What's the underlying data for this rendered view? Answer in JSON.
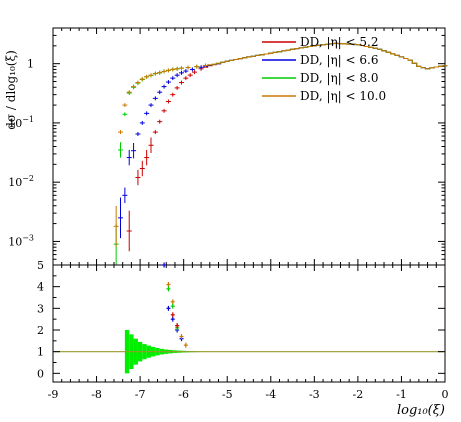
{
  "chart_data": [
    {
      "panel": "main",
      "type": "line",
      "ylabel": "dσ / dlog₁₀(ξ)",
      "yscale": "log",
      "xlim": [
        -9,
        0
      ],
      "ylim": [
        0.0004,
        4
      ],
      "y_ticks": [
        {
          "value": 0.001,
          "base": "10",
          "exp": "−3"
        },
        {
          "value": 0.01,
          "base": "10",
          "exp": "−2"
        },
        {
          "value": 0.1,
          "base": "10",
          "exp": "−1"
        },
        {
          "value": 1,
          "base": "1",
          "exp": ""
        }
      ],
      "legend_position": "top-right",
      "series": [
        {
          "name": "DD, |η| < 5.2",
          "color": "#cc0000",
          "x": [
            -7.25,
            -7.05,
            -6.95,
            -6.85,
            -6.75,
            -6.65,
            -6.55,
            -6.45,
            -6.35,
            -6.25,
            -6.15,
            -6.05,
            -5.95,
            -5.85,
            -5.75,
            -5.6,
            -5.4,
            -5.2,
            -5.0,
            -4.5,
            -4.0,
            -3.5,
            -3.0,
            -2.5,
            -2.0,
            -1.5,
            -1.0,
            -0.8,
            -0.6,
            -0.4,
            -0.2,
            -0.05
          ],
          "y": [
            0.0015,
            0.012,
            0.017,
            0.026,
            0.042,
            0.07,
            0.105,
            0.16,
            0.23,
            0.3,
            0.39,
            0.48,
            0.57,
            0.64,
            0.72,
            0.82,
            0.92,
            1.0,
            1.1,
            1.3,
            1.5,
            1.75,
            2.0,
            2.2,
            2.1,
            1.75,
            1.3,
            1.15,
            0.9,
            0.82,
            0.88,
            0.92
          ]
        },
        {
          "name": "DD, |η| < 6.6",
          "color": "#0000dd",
          "x": [
            -7.45,
            -7.35,
            -7.25,
            -7.15,
            -7.05,
            -6.95,
            -6.85,
            -6.75,
            -6.65,
            -6.55,
            -6.45,
            -6.35,
            -6.25,
            -6.15,
            -6.05,
            -5.95,
            -5.8,
            -5.6,
            -5.4,
            -5.2,
            -5.0,
            -4.5,
            -4.0,
            -3.5,
            -3.0,
            -2.5,
            -2.0,
            -1.5,
            -1.0,
            -0.8,
            -0.6,
            -0.4,
            -0.2,
            -0.05
          ],
          "y": [
            0.0025,
            0.006,
            0.026,
            0.034,
            0.065,
            0.1,
            0.145,
            0.2,
            0.26,
            0.33,
            0.41,
            0.49,
            0.57,
            0.64,
            0.7,
            0.75,
            0.8,
            0.87,
            0.94,
            1.0,
            1.1,
            1.3,
            1.5,
            1.75,
            2.0,
            2.2,
            2.1,
            1.75,
            1.3,
            1.15,
            0.9,
            0.82,
            0.88,
            0.92
          ]
        },
        {
          "name": "DD, |η| < 8.0",
          "color": "#00cc00",
          "x": [
            -7.55,
            -7.45,
            -7.35,
            -7.25,
            -7.15,
            -7.05,
            -6.95,
            -6.85,
            -6.75,
            -6.65,
            -6.55,
            -6.45,
            -6.35,
            -6.25,
            -6.15,
            -6.05,
            -5.9,
            -5.7,
            -5.5,
            -5.3,
            -5.0,
            -4.5,
            -4.0,
            -3.5,
            -3.0,
            -2.5,
            -2.0,
            -1.5,
            -1.0,
            -0.8,
            -0.6,
            -0.4,
            -0.2,
            -0.05
          ],
          "y": [
            0.0009,
            0.035,
            0.14,
            0.32,
            0.4,
            0.47,
            0.54,
            0.6,
            0.63,
            0.68,
            0.7,
            0.74,
            0.77,
            0.8,
            0.82,
            0.84,
            0.86,
            0.89,
            0.93,
            0.98,
            1.1,
            1.3,
            1.5,
            1.75,
            2.0,
            2.2,
            2.1,
            1.75,
            1.3,
            1.15,
            0.9,
            0.82,
            0.88,
            0.92
          ]
        },
        {
          "name": "DD, |η| < 10.0",
          "color": "#cc7700",
          "x": [
            -7.55,
            -7.45,
            -7.35,
            -7.25,
            -7.15,
            -7.05,
            -6.95,
            -6.85,
            -6.75,
            -6.65,
            -6.55,
            -6.45,
            -6.35,
            -6.25,
            -6.15,
            -6.05,
            -5.9,
            -5.7,
            -5.5,
            -5.3,
            -5.0,
            -4.5,
            -4.0,
            -3.5,
            -3.0,
            -2.5,
            -2.0,
            -1.5,
            -1.0,
            -0.8,
            -0.6,
            -0.4,
            -0.2,
            -0.05
          ],
          "y": [
            0.0018,
            0.07,
            0.2,
            0.33,
            0.41,
            0.48,
            0.55,
            0.6,
            0.64,
            0.68,
            0.71,
            0.74,
            0.77,
            0.8,
            0.82,
            0.84,
            0.86,
            0.89,
            0.93,
            0.98,
            1.1,
            1.3,
            1.5,
            1.75,
            2.0,
            2.2,
            2.1,
            1.75,
            1.3,
            1.15,
            0.9,
            0.82,
            0.88,
            0.92
          ]
        }
      ]
    },
    {
      "panel": "ratio",
      "type": "scatter",
      "xlabel": "log₁₀(ξ)",
      "xlim": [
        -9,
        0
      ],
      "ylim": [
        -0.4,
        5
      ],
      "x_ticks": [
        "-9",
        "-8",
        "-7",
        "-6",
        "-5",
        "-4",
        "-3",
        "-2",
        "-1",
        "0"
      ],
      "y_ticks": [
        "0",
        "1",
        "2",
        "3",
        "4",
        "5"
      ],
      "reference_line": 1,
      "uncertainty_band": {
        "color": "#00ee00",
        "x": [
          -7.3,
          -7.2,
          -7.1,
          -7.0,
          -6.9,
          -6.8,
          -6.7,
          -6.6,
          -6.5,
          -6.4,
          -6.3,
          -6.2,
          -6.1,
          -6.0,
          -5.9,
          -5.8,
          -5.7,
          -5.6,
          -5.5
        ],
        "half_width": [
          1.0,
          0.8,
          0.6,
          0.45,
          0.35,
          0.28,
          0.22,
          0.17,
          0.13,
          0.1,
          0.08,
          0.06,
          0.05,
          0.04,
          0.03,
          0.025,
          0.02,
          0.015,
          0.01
        ]
      },
      "series": [
        {
          "color": "#0000dd",
          "x": [
            -6.45,
            -6.35,
            -6.25,
            -6.15,
            -6.05
          ],
          "y": [
            5.0,
            3.0,
            2.5,
            2.0,
            1.6
          ]
        },
        {
          "color": "#cc7700",
          "x": [
            -6.35,
            -6.25,
            -6.15,
            -6.05,
            -5.95
          ],
          "y": [
            4.1,
            3.3,
            2.2,
            1.7,
            1.3
          ]
        },
        {
          "color": "#00cc00",
          "x": [
            -6.35,
            -6.25,
            -6.15
          ],
          "y": [
            3.9,
            3.1,
            2.1
          ]
        },
        {
          "color": "#cc0000",
          "x": [
            -6.25,
            -6.15
          ],
          "y": [
            2.7,
            2.2
          ]
        }
      ]
    }
  ]
}
